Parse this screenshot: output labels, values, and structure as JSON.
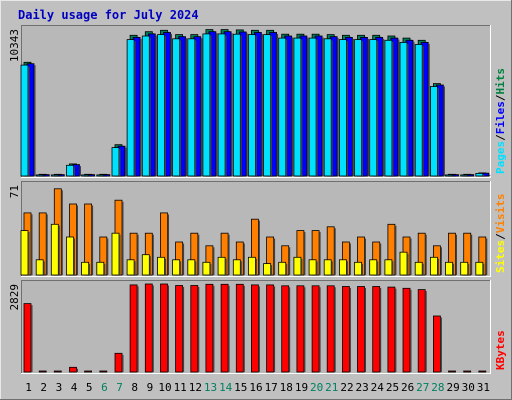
{
  "chart_data": {
    "type": "bar",
    "title": "Daily usage for July 2024",
    "categories": [
      "1",
      "2",
      "3",
      "4",
      "5",
      "6",
      "7",
      "8",
      "9",
      "10",
      "11",
      "12",
      "13",
      "14",
      "15",
      "16",
      "17",
      "18",
      "19",
      "20",
      "21",
      "22",
      "23",
      "24",
      "25",
      "26",
      "27",
      "28",
      "29",
      "30",
      "31"
    ],
    "weekend_days": [
      "6",
      "7",
      "13",
      "14",
      "20",
      "21",
      "27",
      "28"
    ],
    "panels": [
      {
        "id": "hits",
        "max_label": "10343",
        "ylim": [
          0,
          10343
        ],
        "legend": [
          {
            "text": "Pages",
            "color": "#00e0ff"
          },
          {
            "text": "/",
            "color": "#000000"
          },
          {
            "text": "Files",
            "color": "#0000ff"
          },
          {
            "text": "/",
            "color": "#000000"
          },
          {
            "text": "Hits",
            "color": "#008040"
          }
        ],
        "series": [
          {
            "name": "Hits",
            "color": "#00805c",
            "values": [
              8000,
              120,
              120,
              850,
              120,
              120,
              2200,
              9900,
              10150,
              10250,
              9950,
              9950,
              10300,
              10300,
              10280,
              10250,
              10250,
              9980,
              9980,
              9980,
              9950,
              9900,
              9900,
              9900,
              9850,
              9700,
              9550,
              6500,
              120,
              120,
              220
            ]
          },
          {
            "name": "Files",
            "color": "#0000ff",
            "values": [
              7900,
              100,
              100,
              800,
              100,
              100,
              2100,
              9750,
              10000,
              10100,
              9800,
              9800,
              10150,
              10150,
              10130,
              10100,
              10100,
              9850,
              9850,
              9850,
              9800,
              9750,
              9750,
              9750,
              9700,
              9550,
              9400,
              6400,
              100,
              100,
              200
            ]
          },
          {
            "name": "Pages",
            "color": "#00e0ff",
            "values": [
              7800,
              80,
              80,
              750,
              80,
              80,
              2000,
              9600,
              9850,
              9950,
              9650,
              9650,
              10000,
              10000,
              9980,
              9950,
              9950,
              9700,
              9700,
              9700,
              9650,
              9600,
              9600,
              9600,
              9550,
              9400,
              9250,
              6300,
              80,
              80,
              180
            ]
          }
        ]
      },
      {
        "id": "visits",
        "max_label": "71",
        "ylim": [
          0,
          71
        ],
        "legend": [
          {
            "text": "Sites",
            "color": "#ffff00"
          },
          {
            "text": "/",
            "color": "#000000"
          },
          {
            "text": "Visits",
            "color": "#ff8000"
          }
        ],
        "series": [
          {
            "name": "Visits",
            "color": "#ff8000",
            "values": [
              49,
              49,
              68,
              56,
              56,
              30,
              59,
              33,
              33,
              49,
              26,
              33,
              23,
              33,
              26,
              44,
              30,
              23,
              35,
              35,
              38,
              26,
              30,
              26,
              40,
              30,
              33,
              23,
              33,
              33,
              30
            ]
          },
          {
            "name": "Sites",
            "color": "#ffff00",
            "values": [
              35,
              12,
              40,
              30,
              10,
              10,
              33,
              12,
              16,
              14,
              12,
              12,
              10,
              14,
              12,
              14,
              9,
              10,
              14,
              12,
              12,
              12,
              10,
              12,
              12,
              18,
              10,
              14,
              10,
              10,
              10
            ]
          }
        ]
      },
      {
        "id": "kbytes",
        "max_label": "2829",
        "ylim": [
          0,
          2829
        ],
        "legend": [
          {
            "text": "KBytes",
            "color": "#ff0000"
          }
        ],
        "series": [
          {
            "name": "KBytes",
            "color": "#ff0000",
            "values": [
              2200,
              25,
              25,
              150,
              25,
              25,
              600,
              2800,
              2829,
              2829,
              2780,
              2780,
              2820,
              2820,
              2820,
              2800,
              2800,
              2770,
              2770,
              2770,
              2770,
              2750,
              2750,
              2750,
              2730,
              2690,
              2650,
              1800,
              25,
              25,
              25
            ]
          }
        ]
      }
    ]
  }
}
